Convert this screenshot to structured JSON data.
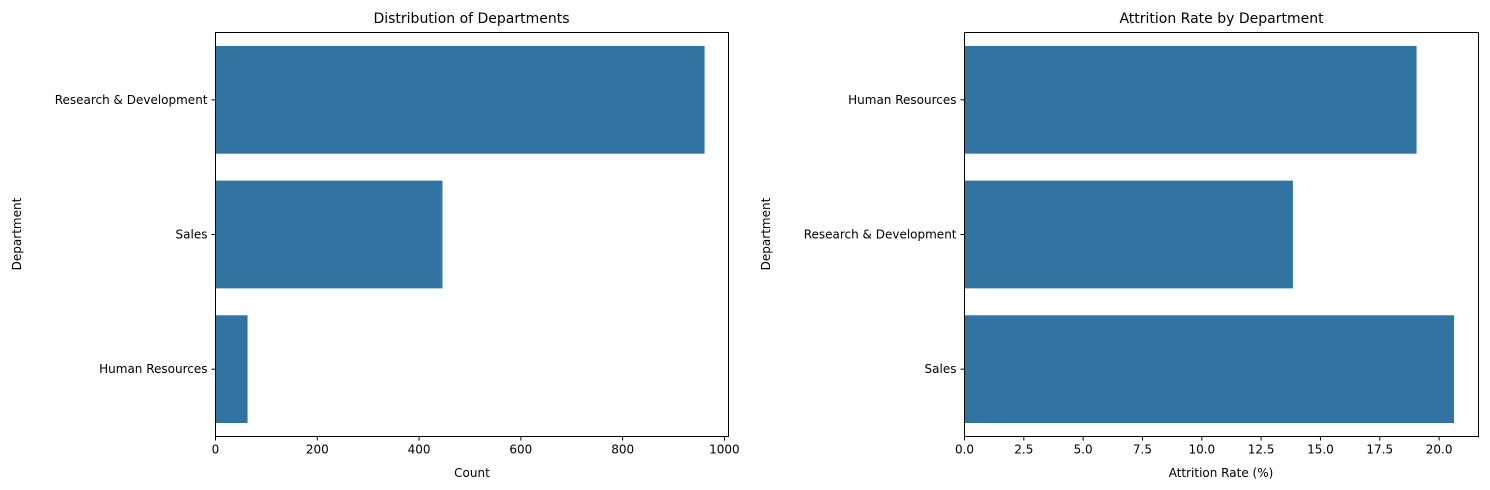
{
  "chart_data": [
    {
      "type": "bar",
      "orientation": "horizontal",
      "title": "Distribution of Departments",
      "xlabel": "Count",
      "ylabel": "Department",
      "categories": [
        "Research & Development",
        "Sales",
        "Human Resources"
      ],
      "values": [
        961,
        446,
        63
      ],
      "xlim": [
        0,
        1008
      ],
      "xticks": [
        0,
        200,
        400,
        600,
        800,
        1000
      ],
      "xtick_labels": [
        "0",
        "200",
        "400",
        "600",
        "800",
        "1000"
      ],
      "grid": false,
      "bar_color": "#3274a1"
    },
    {
      "type": "bar",
      "orientation": "horizontal",
      "title": "Attrition Rate by Department",
      "xlabel": "Attrition Rate (%)",
      "ylabel": "Department",
      "categories": [
        "Human Resources",
        "Research & Development",
        "Sales"
      ],
      "values": [
        19.05,
        13.84,
        20.63
      ],
      "xlim": [
        0,
        21.66
      ],
      "xticks": [
        0,
        2.5,
        5,
        7.5,
        10,
        12.5,
        15,
        17.5,
        20
      ],
      "xtick_labels": [
        "0.0",
        "2.5",
        "5.0",
        "7.5",
        "10.0",
        "12.5",
        "15.0",
        "17.5",
        "20.0"
      ],
      "grid": false,
      "bar_color": "#3274a1"
    }
  ]
}
